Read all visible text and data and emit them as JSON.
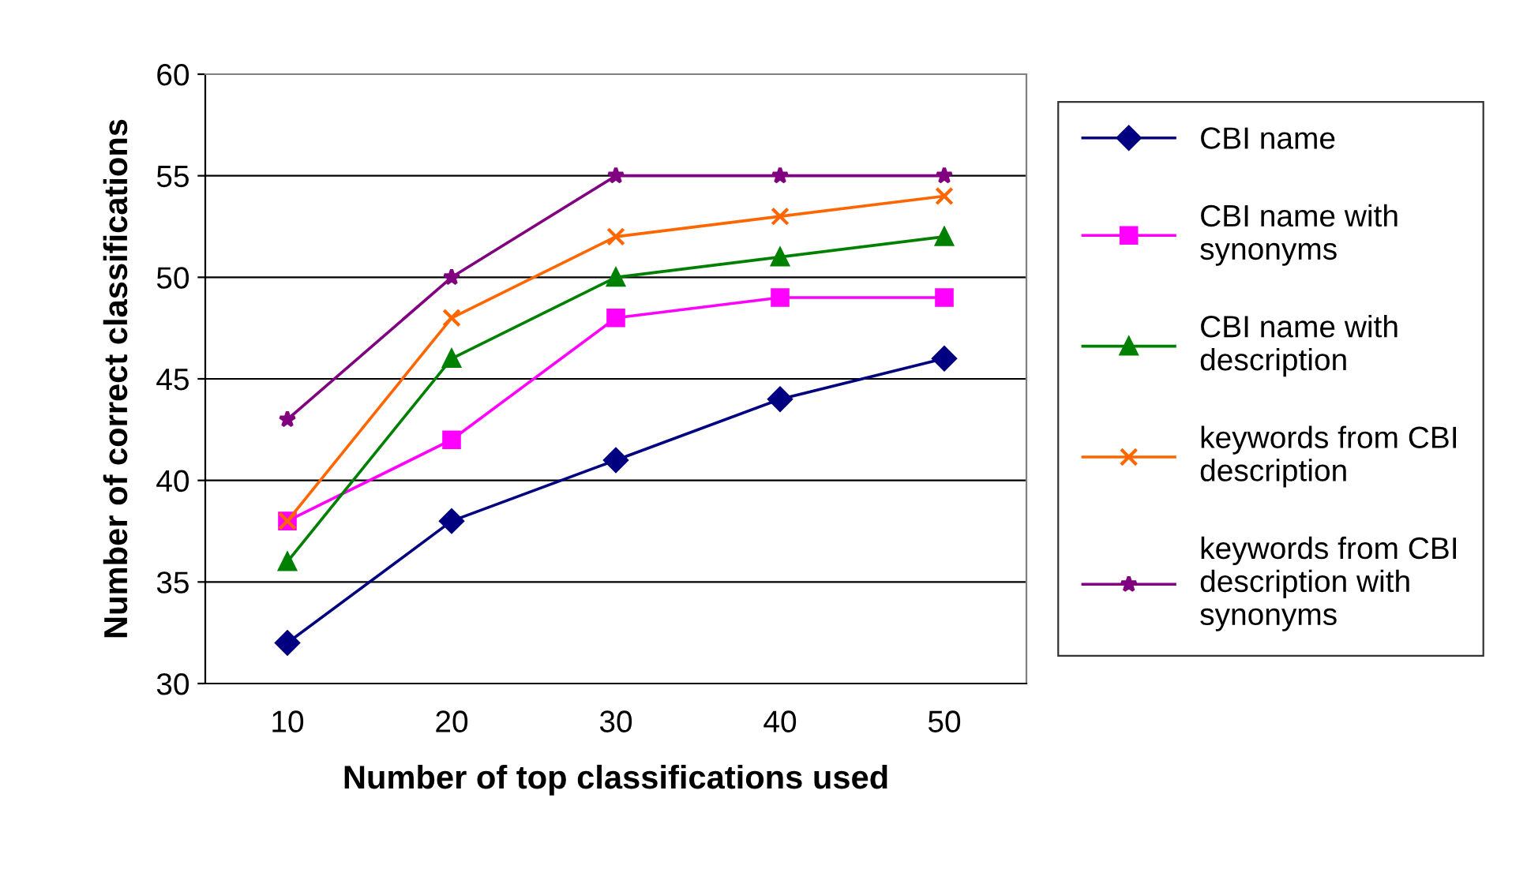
{
  "chart_data": {
    "type": "line",
    "xlabel": "Number of top classifications used",
    "ylabel": "Number of correct classifications",
    "categories": [
      "10",
      "20",
      "30",
      "40",
      "50"
    ],
    "ylim": [
      30,
      60
    ],
    "yticks": [
      30,
      35,
      40,
      45,
      50,
      55,
      60
    ],
    "grid": "y",
    "legend": "right",
    "line_style": "solid",
    "series": [
      {
        "name": "CBI name",
        "color": "#000080",
        "marker": "diamond",
        "values": [
          32,
          38,
          41,
          44,
          46
        ]
      },
      {
        "name": "CBI name with synonyms",
        "color": "#ff00ff",
        "marker": "square",
        "values": [
          38,
          42,
          48,
          49,
          49
        ]
      },
      {
        "name": "CBI name with description",
        "color": "#008000",
        "marker": "triangle",
        "values": [
          36,
          46,
          50,
          51,
          52
        ]
      },
      {
        "name": "keywords from CBI description",
        "color": "#ff6600",
        "marker": "cross",
        "values": [
          38,
          48,
          52,
          53,
          54
        ]
      },
      {
        "name": "keywords from CBI description with synonyms",
        "color": "#800080",
        "marker": "star",
        "values": [
          43,
          50,
          55,
          55,
          55
        ]
      }
    ]
  }
}
